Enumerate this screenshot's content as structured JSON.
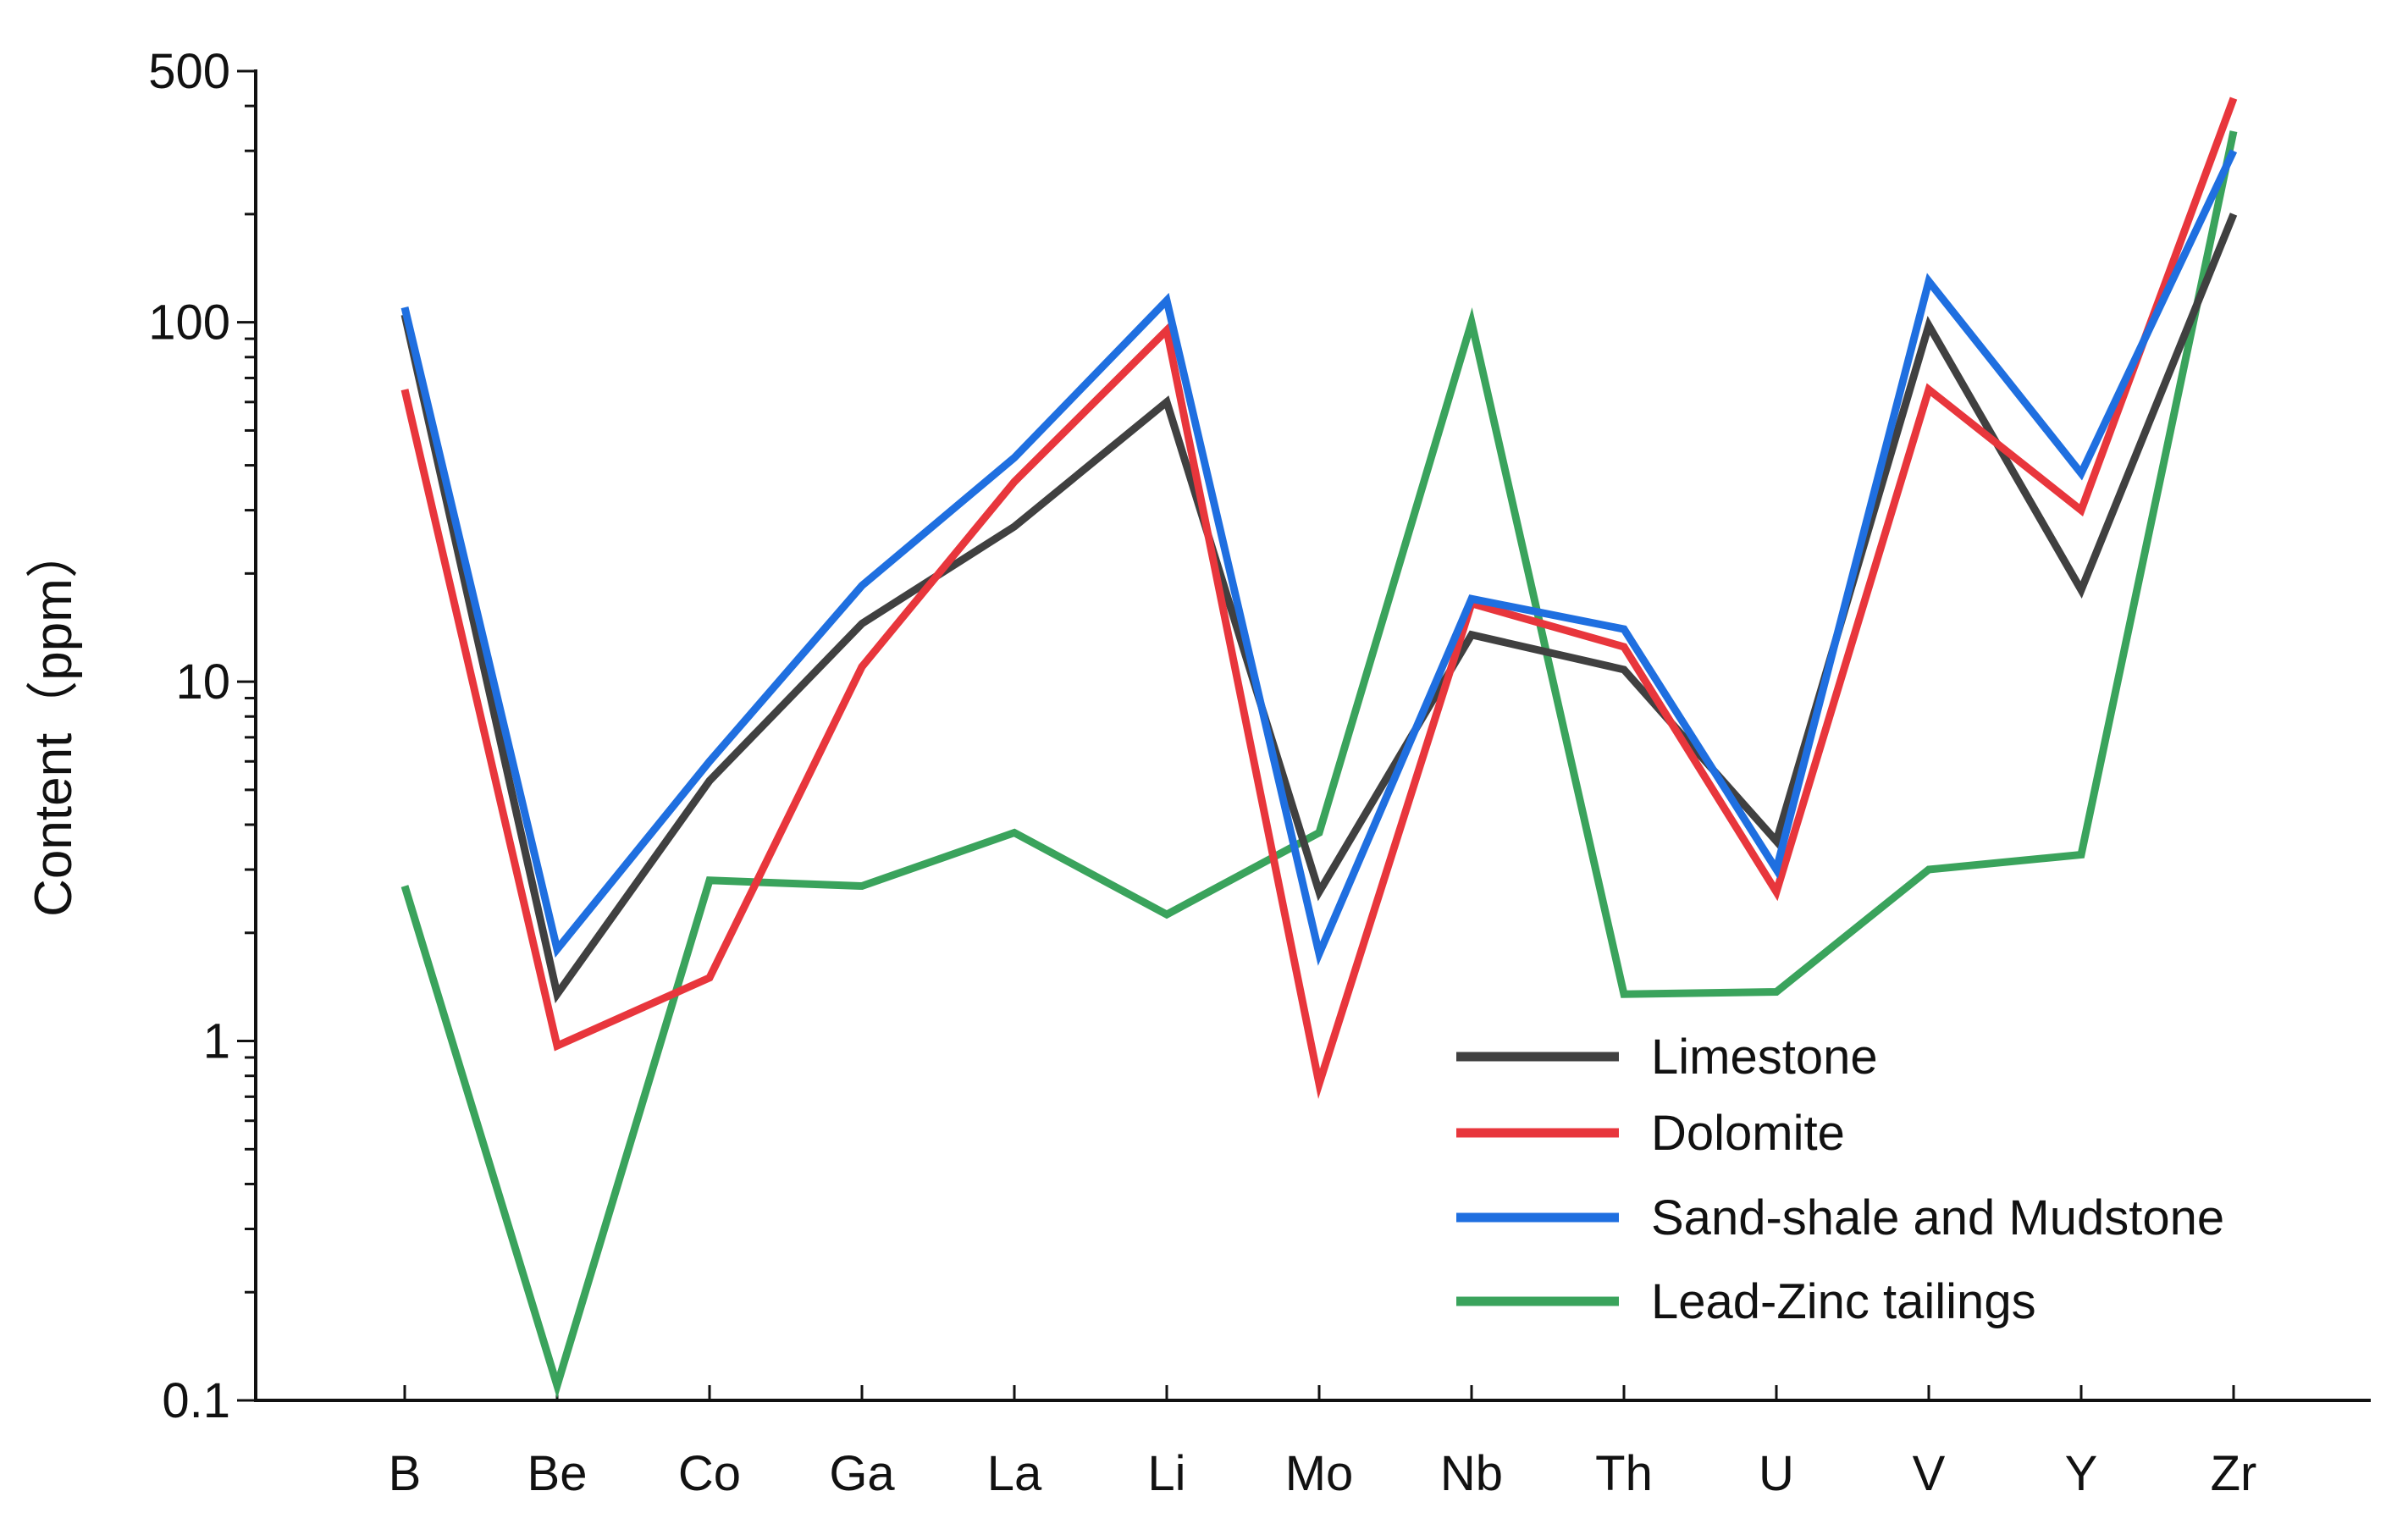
{
  "chart_data": {
    "type": "line",
    "title": "",
    "xlabel": "",
    "ylabel": "Content（ppm）",
    "y_scale": "log",
    "ylim": [
      0.1,
      500
    ],
    "y_ticks": [
      {
        "value": 0.1,
        "label": "0.1"
      },
      {
        "value": 1,
        "label": "1"
      },
      {
        "value": 10,
        "label": "10"
      },
      {
        "value": 100,
        "label": "100"
      },
      {
        "value": 500,
        "label": "500"
      }
    ],
    "categories": [
      "B",
      "Be",
      "Co",
      "Ga",
      "La",
      "Li",
      "Mo",
      "Nb",
      "Th",
      "U",
      "V",
      "Y",
      "Zr"
    ],
    "grid": false,
    "legend_position": "bottom-right",
    "series": [
      {
        "name": "Limestone",
        "color": "#404040",
        "values": [
          105,
          1.35,
          5.3,
          14.5,
          27,
          60,
          2.6,
          13.5,
          10.8,
          3.6,
          98,
          18,
          200
        ]
      },
      {
        "name": "Dolomite",
        "color": "#e8363c",
        "values": [
          65,
          0.97,
          1.5,
          11,
          36,
          95,
          0.76,
          16.5,
          12.5,
          2.6,
          65,
          30,
          420
        ]
      },
      {
        "name": "Sand-shale and Mudstone",
        "color": "#1f6fe0",
        "values": [
          110,
          1.8,
          6,
          18.5,
          42,
          115,
          1.75,
          17,
          14,
          3,
          130,
          38,
          300
        ]
      },
      {
        "name": "Lead-Zinc tailings",
        "color": "#3aa35c",
        "values": [
          2.7,
          0.11,
          2.8,
          2.7,
          3.8,
          2.25,
          3.8,
          100,
          1.35,
          1.37,
          3,
          3.3,
          340
        ]
      }
    ]
  }
}
